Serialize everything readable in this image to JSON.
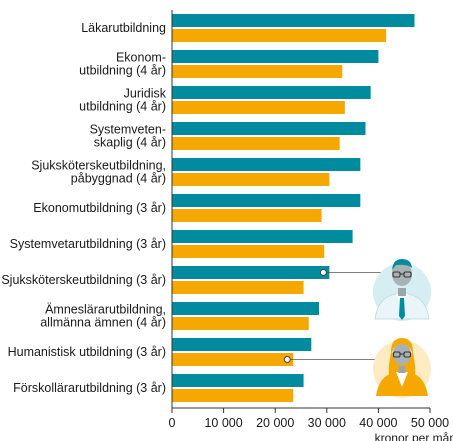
{
  "colors": {
    "series_1": "#008C9E",
    "series_2": "#F5A800",
    "axis": "#333333"
  },
  "icons": [
    "man-avatar-icon",
    "woman-avatar-icon"
  ],
  "chart_data": {
    "type": "bar",
    "orientation": "horizontal",
    "categories": [
      "Läkarutbildning",
      "Ekonom-\nutbildning (4 år)",
      "Juridisk\nutbildning (4 år)",
      "Systemveten-\nskaplig  (4 år)",
      "Sjuksköterskeutbildning,\npåbyggnad (4 år)",
      "Ekonomutbildning (3 år)",
      "Systemvetarutbildning (3 år)",
      "Sjuksköterskeutbildning (3 år)",
      "Ämneslärarutbildning,\nallmänna ämnen (4 år)",
      "Humanistisk utbildning (3 år)",
      "Förskollärarutbildning (3 år)"
    ],
    "series": [
      {
        "values": [
          47000,
          40000,
          38500,
          37500,
          36500,
          36500,
          35000,
          30500,
          28500,
          27000,
          25500
        ]
      },
      {
        "values": [
          41500,
          33000,
          33500,
          32500,
          30500,
          29000,
          29500,
          25500,
          26500,
          23500,
          23500
        ]
      }
    ],
    "xlabel": "kronor per månad",
    "xlim": [
      0,
      50000
    ],
    "xticks": [
      0,
      10000,
      20000,
      30000,
      40000,
      50000
    ],
    "xtick_labels": [
      "0",
      "10 000",
      "20 000",
      "30 000",
      "40 000",
      "50 000"
    ],
    "grid": false,
    "legend": "none",
    "annotations": [
      {
        "series": 0,
        "category": 7,
        "icon": "man-avatar-icon"
      },
      {
        "series": 1,
        "category": 9,
        "icon": "woman-avatar-icon"
      }
    ]
  }
}
